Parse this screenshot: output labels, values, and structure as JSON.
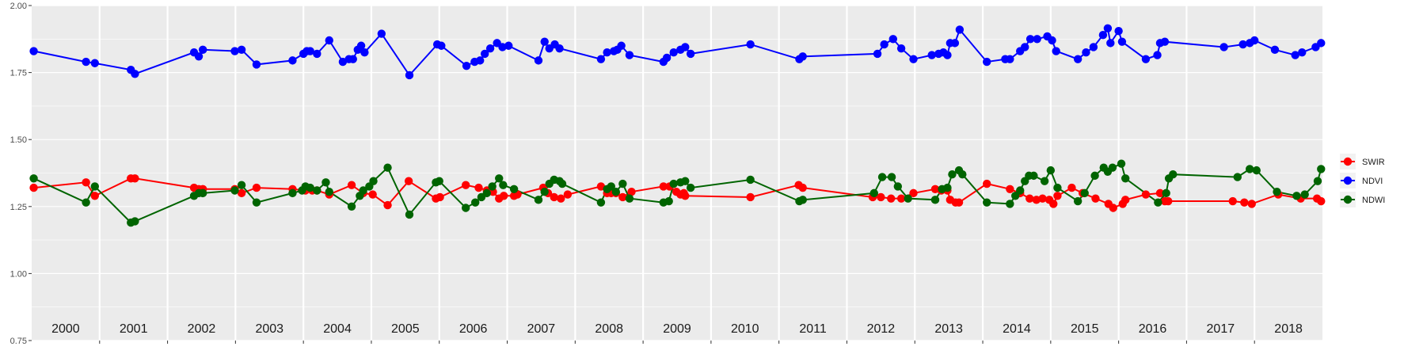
{
  "chart_data": {
    "type": "line",
    "title": "",
    "xlabel": "",
    "ylabel": "",
    "ylim": [
      0.75,
      2.0
    ],
    "y_ticks": [
      "0.75",
      "1.00",
      "1.25",
      "1.50",
      "1.75",
      "2.00"
    ],
    "x_year_labels": [
      "2000",
      "2001",
      "2002",
      "2003",
      "2004",
      "2005",
      "2006",
      "2007",
      "2008",
      "2009",
      "2010",
      "2011",
      "2012",
      "2013",
      "2014",
      "2015",
      "2016",
      "2017",
      "2018"
    ],
    "x_range": [
      2000,
      2019
    ],
    "grid": true,
    "legend_position": "right",
    "series": [
      {
        "name": "SWIR",
        "color": "#FF0000",
        "points": [
          [
            2000.03,
            1.32
          ],
          [
            2000.8,
            1.34
          ],
          [
            2000.93,
            1.29
          ],
          [
            2001.46,
            1.355
          ],
          [
            2001.52,
            1.355
          ],
          [
            2002.39,
            1.32
          ],
          [
            2002.46,
            1.315
          ],
          [
            2002.52,
            1.315
          ],
          [
            2002.99,
            1.315
          ],
          [
            2003.09,
            1.3
          ],
          [
            2003.31,
            1.32
          ],
          [
            2003.84,
            1.315
          ],
          [
            2004.03,
            1.31
          ],
          [
            2004.13,
            1.31
          ],
          [
            2004.2,
            1.31
          ],
          [
            2004.38,
            1.295
          ],
          [
            2004.71,
            1.33
          ],
          [
            2004.88,
            1.3
          ],
          [
            2005.02,
            1.295
          ],
          [
            2005.24,
            1.255
          ],
          [
            2005.55,
            1.345
          ],
          [
            2005.95,
            1.28
          ],
          [
            2006.01,
            1.285
          ],
          [
            2006.39,
            1.33
          ],
          [
            2006.58,
            1.32
          ],
          [
            2006.7,
            1.31
          ],
          [
            2006.79,
            1.305
          ],
          [
            2006.88,
            1.28
          ],
          [
            2006.95,
            1.29
          ],
          [
            2007.1,
            1.29
          ],
          [
            2007.15,
            1.295
          ],
          [
            2007.53,
            1.32
          ],
          [
            2007.6,
            1.3
          ],
          [
            2007.69,
            1.285
          ],
          [
            2007.79,
            1.28
          ],
          [
            2007.89,
            1.295
          ],
          [
            2008.38,
            1.325
          ],
          [
            2008.47,
            1.3
          ],
          [
            2008.53,
            1.3
          ],
          [
            2008.6,
            1.3
          ],
          [
            2008.7,
            1.285
          ],
          [
            2008.83,
            1.305
          ],
          [
            2009.3,
            1.325
          ],
          [
            2009.39,
            1.325
          ],
          [
            2009.49,
            1.305
          ],
          [
            2009.55,
            1.295
          ],
          [
            2009.6,
            1.3
          ],
          [
            2009.62,
            1.29
          ],
          [
            2010.58,
            1.285
          ],
          [
            2011.29,
            1.33
          ],
          [
            2011.35,
            1.32
          ],
          [
            2012.38,
            1.285
          ],
          [
            2012.5,
            1.285
          ],
          [
            2012.65,
            1.28
          ],
          [
            2012.8,
            1.28
          ],
          [
            2012.98,
            1.3
          ],
          [
            2013.3,
            1.315
          ],
          [
            2013.39,
            1.31
          ],
          [
            2013.48,
            1.31
          ],
          [
            2013.52,
            1.275
          ],
          [
            2013.6,
            1.265
          ],
          [
            2013.65,
            1.265
          ],
          [
            2014.06,
            1.335
          ],
          [
            2014.4,
            1.315
          ],
          [
            2014.55,
            1.3
          ],
          [
            2014.69,
            1.28
          ],
          [
            2014.79,
            1.275
          ],
          [
            2014.88,
            1.28
          ],
          [
            2014.98,
            1.275
          ],
          [
            2015.04,
            1.26
          ],
          [
            2015.1,
            1.29
          ],
          [
            2015.31,
            1.32
          ],
          [
            2015.47,
            1.3
          ],
          [
            2015.66,
            1.28
          ],
          [
            2015.85,
            1.26
          ],
          [
            2015.92,
            1.245
          ],
          [
            2016.06,
            1.26
          ],
          [
            2016.1,
            1.275
          ],
          [
            2016.4,
            1.295
          ],
          [
            2016.61,
            1.3
          ],
          [
            2016.68,
            1.27
          ],
          [
            2016.73,
            1.27
          ],
          [
            2017.68,
            1.27
          ],
          [
            2017.85,
            1.265
          ],
          [
            2017.96,
            1.26
          ],
          [
            2018.35,
            1.295
          ],
          [
            2018.68,
            1.28
          ],
          [
            2018.92,
            1.28
          ],
          [
            2018.98,
            1.27
          ]
        ]
      },
      {
        "name": "NDVI",
        "color": "#0000FF",
        "points": [
          [
            2000.03,
            1.83
          ],
          [
            2000.8,
            1.79
          ],
          [
            2000.93,
            1.785
          ],
          [
            2001.46,
            1.76
          ],
          [
            2001.52,
            1.745
          ],
          [
            2002.39,
            1.825
          ],
          [
            2002.46,
            1.81
          ],
          [
            2002.52,
            1.835
          ],
          [
            2002.99,
            1.83
          ],
          [
            2003.09,
            1.835
          ],
          [
            2003.31,
            1.78
          ],
          [
            2003.84,
            1.795
          ],
          [
            2004.0,
            1.82
          ],
          [
            2004.05,
            1.83
          ],
          [
            2004.1,
            1.83
          ],
          [
            2004.2,
            1.82
          ],
          [
            2004.38,
            1.87
          ],
          [
            2004.58,
            1.79
          ],
          [
            2004.67,
            1.8
          ],
          [
            2004.73,
            1.8
          ],
          [
            2004.8,
            1.835
          ],
          [
            2004.85,
            1.85
          ],
          [
            2004.9,
            1.825
          ],
          [
            2005.15,
            1.895
          ],
          [
            2005.56,
            1.74
          ],
          [
            2005.97,
            1.855
          ],
          [
            2006.03,
            1.85
          ],
          [
            2006.4,
            1.775
          ],
          [
            2006.52,
            1.79
          ],
          [
            2006.6,
            1.795
          ],
          [
            2006.67,
            1.82
          ],
          [
            2006.75,
            1.84
          ],
          [
            2006.85,
            1.86
          ],
          [
            2006.93,
            1.845
          ],
          [
            2007.02,
            1.85
          ],
          [
            2007.46,
            1.795
          ],
          [
            2007.55,
            1.865
          ],
          [
            2007.62,
            1.84
          ],
          [
            2007.7,
            1.855
          ],
          [
            2007.77,
            1.84
          ],
          [
            2008.38,
            1.8
          ],
          [
            2008.47,
            1.825
          ],
          [
            2008.57,
            1.83
          ],
          [
            2008.62,
            1.835
          ],
          [
            2008.68,
            1.85
          ],
          [
            2008.8,
            1.815
          ],
          [
            2009.3,
            1.79
          ],
          [
            2009.35,
            1.805
          ],
          [
            2009.45,
            1.825
          ],
          [
            2009.55,
            1.835
          ],
          [
            2009.62,
            1.845
          ],
          [
            2009.7,
            1.82
          ],
          [
            2010.58,
            1.855
          ],
          [
            2011.3,
            1.8
          ],
          [
            2011.35,
            1.81
          ],
          [
            2012.45,
            1.82
          ],
          [
            2012.55,
            1.855
          ],
          [
            2012.68,
            1.875
          ],
          [
            2012.8,
            1.84
          ],
          [
            2012.98,
            1.8
          ],
          [
            2013.25,
            1.815
          ],
          [
            2013.35,
            1.82
          ],
          [
            2013.42,
            1.825
          ],
          [
            2013.48,
            1.815
          ],
          [
            2013.52,
            1.86
          ],
          [
            2013.59,
            1.86
          ],
          [
            2013.66,
            1.91
          ],
          [
            2014.06,
            1.79
          ],
          [
            2014.33,
            1.8
          ],
          [
            2014.4,
            1.8
          ],
          [
            2014.55,
            1.83
          ],
          [
            2014.62,
            1.845
          ],
          [
            2014.7,
            1.875
          ],
          [
            2014.8,
            1.875
          ],
          [
            2014.95,
            1.885
          ],
          [
            2015.02,
            1.87
          ],
          [
            2015.08,
            1.83
          ],
          [
            2015.4,
            1.8
          ],
          [
            2015.52,
            1.825
          ],
          [
            2015.63,
            1.845
          ],
          [
            2015.77,
            1.89
          ],
          [
            2015.84,
            1.915
          ],
          [
            2015.88,
            1.86
          ],
          [
            2016.0,
            1.905
          ],
          [
            2016.05,
            1.865
          ],
          [
            2016.4,
            1.8
          ],
          [
            2016.57,
            1.815
          ],
          [
            2016.61,
            1.86
          ],
          [
            2016.68,
            1.865
          ],
          [
            2017.55,
            1.845
          ],
          [
            2017.83,
            1.855
          ],
          [
            2017.93,
            1.86
          ],
          [
            2018.0,
            1.87
          ],
          [
            2018.3,
            1.835
          ],
          [
            2018.6,
            1.815
          ],
          [
            2018.7,
            1.825
          ],
          [
            2018.9,
            1.845
          ],
          [
            2018.98,
            1.86
          ]
        ]
      },
      {
        "name": "NDWI",
        "color": "#006400",
        "points": [
          [
            2000.03,
            1.355
          ],
          [
            2000.8,
            1.265
          ],
          [
            2000.93,
            1.325
          ],
          [
            2001.46,
            1.19
          ],
          [
            2001.52,
            1.195
          ],
          [
            2002.39,
            1.29
          ],
          [
            2002.46,
            1.3
          ],
          [
            2002.52,
            1.3
          ],
          [
            2002.99,
            1.31
          ],
          [
            2003.09,
            1.33
          ],
          [
            2003.31,
            1.265
          ],
          [
            2003.84,
            1.3
          ],
          [
            2003.98,
            1.31
          ],
          [
            2004.03,
            1.325
          ],
          [
            2004.1,
            1.32
          ],
          [
            2004.2,
            1.31
          ],
          [
            2004.33,
            1.34
          ],
          [
            2004.38,
            1.305
          ],
          [
            2004.71,
            1.25
          ],
          [
            2004.83,
            1.29
          ],
          [
            2004.88,
            1.31
          ],
          [
            2004.97,
            1.325
          ],
          [
            2005.03,
            1.345
          ],
          [
            2005.24,
            1.395
          ],
          [
            2005.56,
            1.22
          ],
          [
            2005.95,
            1.34
          ],
          [
            2006.0,
            1.345
          ],
          [
            2006.39,
            1.245
          ],
          [
            2006.53,
            1.265
          ],
          [
            2006.62,
            1.285
          ],
          [
            2006.7,
            1.3
          ],
          [
            2006.78,
            1.325
          ],
          [
            2006.88,
            1.355
          ],
          [
            2006.94,
            1.33
          ],
          [
            2007.1,
            1.315
          ],
          [
            2007.46,
            1.275
          ],
          [
            2007.55,
            1.305
          ],
          [
            2007.62,
            1.335
          ],
          [
            2007.69,
            1.35
          ],
          [
            2007.77,
            1.345
          ],
          [
            2007.81,
            1.335
          ],
          [
            2008.38,
            1.265
          ],
          [
            2008.47,
            1.315
          ],
          [
            2008.53,
            1.325
          ],
          [
            2008.6,
            1.305
          ],
          [
            2008.7,
            1.335
          ],
          [
            2008.8,
            1.28
          ],
          [
            2009.3,
            1.265
          ],
          [
            2009.38,
            1.27
          ],
          [
            2009.45,
            1.335
          ],
          [
            2009.55,
            1.34
          ],
          [
            2009.62,
            1.345
          ],
          [
            2009.7,
            1.32
          ],
          [
            2010.58,
            1.35
          ],
          [
            2011.3,
            1.27
          ],
          [
            2011.35,
            1.275
          ],
          [
            2012.4,
            1.3
          ],
          [
            2012.52,
            1.36
          ],
          [
            2012.66,
            1.36
          ],
          [
            2012.75,
            1.325
          ],
          [
            2012.9,
            1.28
          ],
          [
            2013.3,
            1.275
          ],
          [
            2013.4,
            1.315
          ],
          [
            2013.48,
            1.32
          ],
          [
            2013.55,
            1.37
          ],
          [
            2013.65,
            1.385
          ],
          [
            2013.7,
            1.37
          ],
          [
            2014.06,
            1.265
          ],
          [
            2014.4,
            1.26
          ],
          [
            2014.48,
            1.29
          ],
          [
            2014.55,
            1.31
          ],
          [
            2014.62,
            1.345
          ],
          [
            2014.68,
            1.365
          ],
          [
            2014.75,
            1.365
          ],
          [
            2014.91,
            1.345
          ],
          [
            2015.0,
            1.385
          ],
          [
            2015.1,
            1.32
          ],
          [
            2015.4,
            1.27
          ],
          [
            2015.5,
            1.3
          ],
          [
            2015.65,
            1.365
          ],
          [
            2015.78,
            1.395
          ],
          [
            2015.84,
            1.38
          ],
          [
            2015.91,
            1.395
          ],
          [
            2016.04,
            1.41
          ],
          [
            2016.1,
            1.355
          ],
          [
            2016.58,
            1.265
          ],
          [
            2016.7,
            1.3
          ],
          [
            2016.74,
            1.355
          ],
          [
            2016.8,
            1.37
          ],
          [
            2017.75,
            1.36
          ],
          [
            2017.93,
            1.39
          ],
          [
            2018.03,
            1.385
          ],
          [
            2018.33,
            1.305
          ],
          [
            2018.62,
            1.29
          ],
          [
            2018.74,
            1.295
          ],
          [
            2018.93,
            1.345
          ],
          [
            2018.98,
            1.39
          ]
        ]
      }
    ]
  }
}
